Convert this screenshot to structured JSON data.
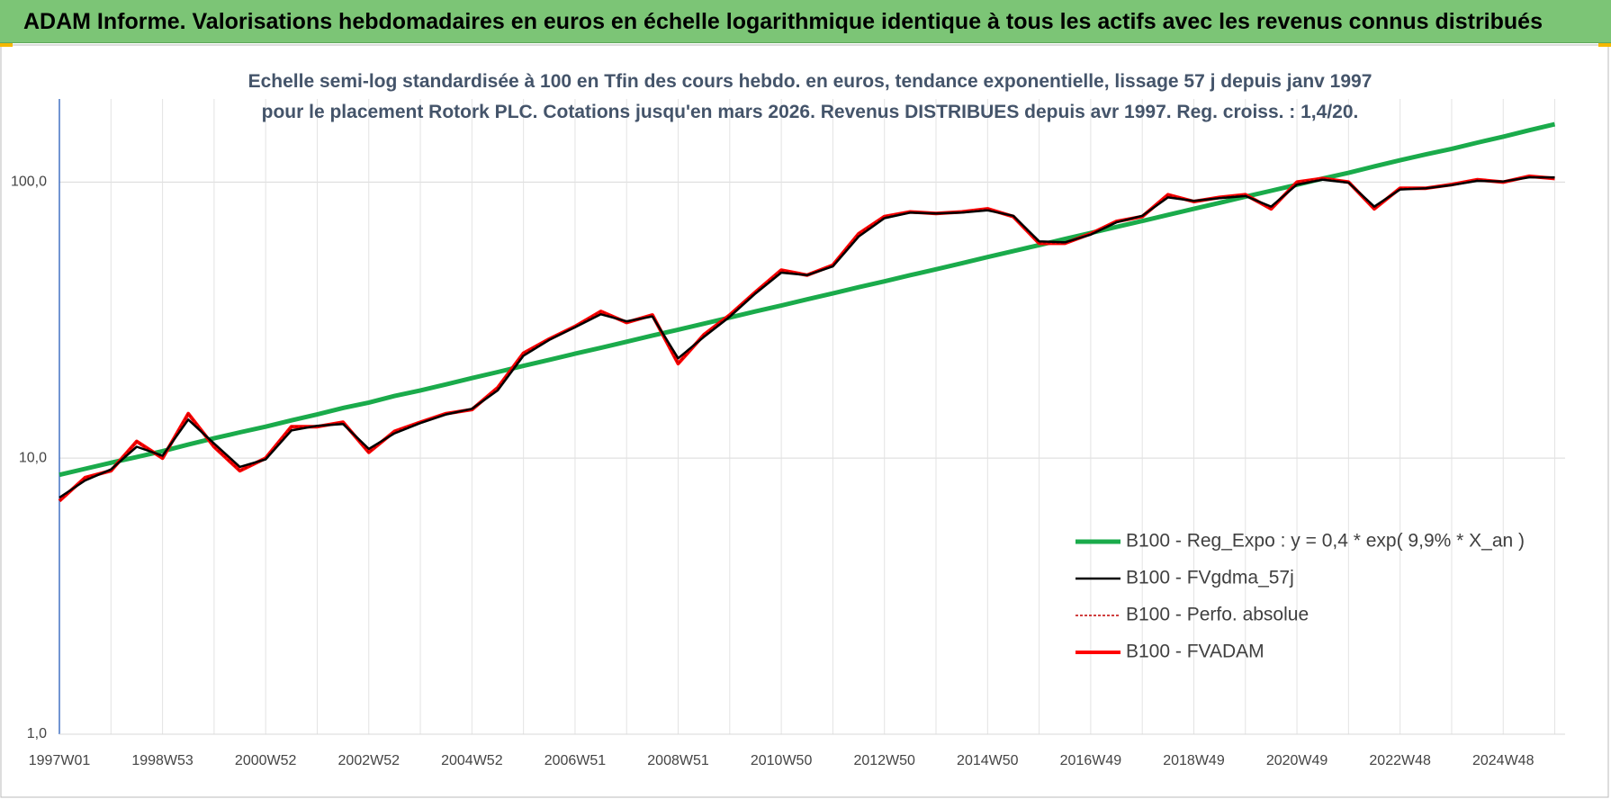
{
  "header": {
    "title": "ADAM Informe. Valorisations hebdomadaires en euros en échelle logarithmique identique à tous les actifs avec les revenus connus distribués"
  },
  "chart_data": {
    "type": "line",
    "subtitle": "Echelle semi-log standardisée à 100 en Tfin des cours hebdo. en euros, tendance exponentielle, lissage 57 j depuis janv 1997 pour le placement Rotork PLC. Cotations jusqu'en mars 2026. Revenus DISTRIBUES depuis avr 1997. Reg. croiss. : 1,4/20.",
    "log_scale": true,
    "grid": true,
    "legend": "right",
    "categories": [
      "1997W01",
      null,
      null,
      null,
      "1998W53",
      null,
      null,
      null,
      "2000W52",
      null,
      null,
      null,
      "2002W52",
      null,
      null,
      null,
      "2004W52",
      null,
      null,
      null,
      "2006W51",
      null,
      null,
      null,
      "2008W51",
      null,
      null,
      null,
      "2010W50",
      null,
      null,
      null,
      "2012W50",
      null,
      null,
      null,
      "2014W50",
      null,
      null,
      null,
      "2016W49",
      null,
      null,
      null,
      "2018W49",
      null,
      null,
      null,
      "2020W49",
      null,
      null,
      null,
      "2022W48",
      null,
      null,
      null,
      "2024W48",
      null,
      null
    ],
    "ylim": [
      1,
      200
    ],
    "yticks": [
      {
        "value": 1,
        "label": "1,0"
      },
      {
        "value": 10,
        "label": "10,0"
      },
      {
        "value": 100,
        "label": "100,0"
      }
    ],
    "series": [
      {
        "name": "B100 - Reg_Expo : y = 0,4 * exp( 9,9% *  X_an )",
        "color": "#1aab4b",
        "width": 5,
        "dash": null,
        "values": [
          8.7,
          9.15,
          9.62,
          10.1,
          10.6,
          11.2,
          11.8,
          12.4,
          13.0,
          13.7,
          14.4,
          15.2,
          15.9,
          16.8,
          17.6,
          18.5,
          19.5,
          20.5,
          21.6,
          22.7,
          23.9,
          25.1,
          26.4,
          27.8,
          29.2,
          30.7,
          32.3,
          34.0,
          35.7,
          37.6,
          39.5,
          41.6,
          43.7,
          46.0,
          48.3,
          50.8,
          53.5,
          56.2,
          59.1,
          62.2,
          65.4,
          68.8,
          72.3,
          76.1,
          80.0,
          84.1,
          88.5,
          93.0,
          97.8,
          103,
          108,
          114,
          120,
          126,
          132,
          139,
          146,
          154,
          162
        ]
      },
      {
        "name": "B100 - FVgdma_57j",
        "color": "#000000",
        "width": 2.5,
        "dash": null,
        "values": [
          7.2,
          8.3,
          9.1,
          11.0,
          10.2,
          13.8,
          11.3,
          9.3,
          9.9,
          12.6,
          13.1,
          13.3,
          10.8,
          12.3,
          13.4,
          14.4,
          15.1,
          17.6,
          23.5,
          26.8,
          29.8,
          33.2,
          31.3,
          32.6,
          23.0,
          27.5,
          32.5,
          39.5,
          47.0,
          46.0,
          49.5,
          63.5,
          74.0,
          77.5,
          77.0,
          77.5,
          79.0,
          75.5,
          61.0,
          60.5,
          64.5,
          71.5,
          75.5,
          88.0,
          85.5,
          87.5,
          89.0,
          81.5,
          98.0,
          102,
          99.5,
          81.5,
          94.0,
          95.0,
          97.5,
          101,
          100.5,
          104,
          104
        ]
      },
      {
        "name": "B100 - Perfo. absolue",
        "color": "#c00000",
        "width": 1.5,
        "dash": "3,2",
        "values": [
          7.0,
          8.5,
          9.0,
          11.5,
          10.0,
          14.5,
          11.0,
          9.0,
          10.0,
          13.0,
          13.0,
          13.5,
          10.5,
          12.5,
          13.5,
          14.5,
          15.0,
          18.0,
          24.0,
          27.0,
          30.0,
          34.0,
          31.0,
          33.0,
          22.0,
          28.0,
          33.0,
          40.0,
          48.0,
          46.0,
          50.0,
          65.0,
          75.0,
          78.0,
          77.0,
          78.0,
          80.0,
          75.0,
          60.0,
          60.0,
          65.0,
          72.0,
          75.0,
          90.0,
          85.0,
          88.0,
          90.0,
          80.0,
          100,
          103,
          100,
          80,
          95,
          95,
          98,
          102,
          100,
          105,
          103
        ]
      },
      {
        "name": "B100 - FVADAM",
        "color": "#ff0000",
        "width": 4,
        "dash": null,
        "values": [
          7.0,
          8.5,
          9.0,
          11.5,
          10.0,
          14.5,
          11.0,
          9.0,
          10.0,
          13.0,
          13.0,
          13.5,
          10.5,
          12.5,
          13.5,
          14.5,
          15.0,
          18.0,
          24.0,
          27.0,
          30.0,
          34.0,
          31.0,
          33.0,
          22.0,
          28.0,
          33.0,
          40.0,
          48.0,
          46.0,
          50.0,
          65.0,
          75.0,
          78.0,
          77.0,
          78.0,
          80.0,
          75.0,
          60.0,
          60.0,
          65.0,
          72.0,
          75.0,
          90.0,
          85.0,
          88.0,
          90.0,
          80.0,
          100,
          103,
          100,
          80,
          95,
          95,
          98,
          102,
          100,
          105,
          103
        ]
      }
    ]
  }
}
